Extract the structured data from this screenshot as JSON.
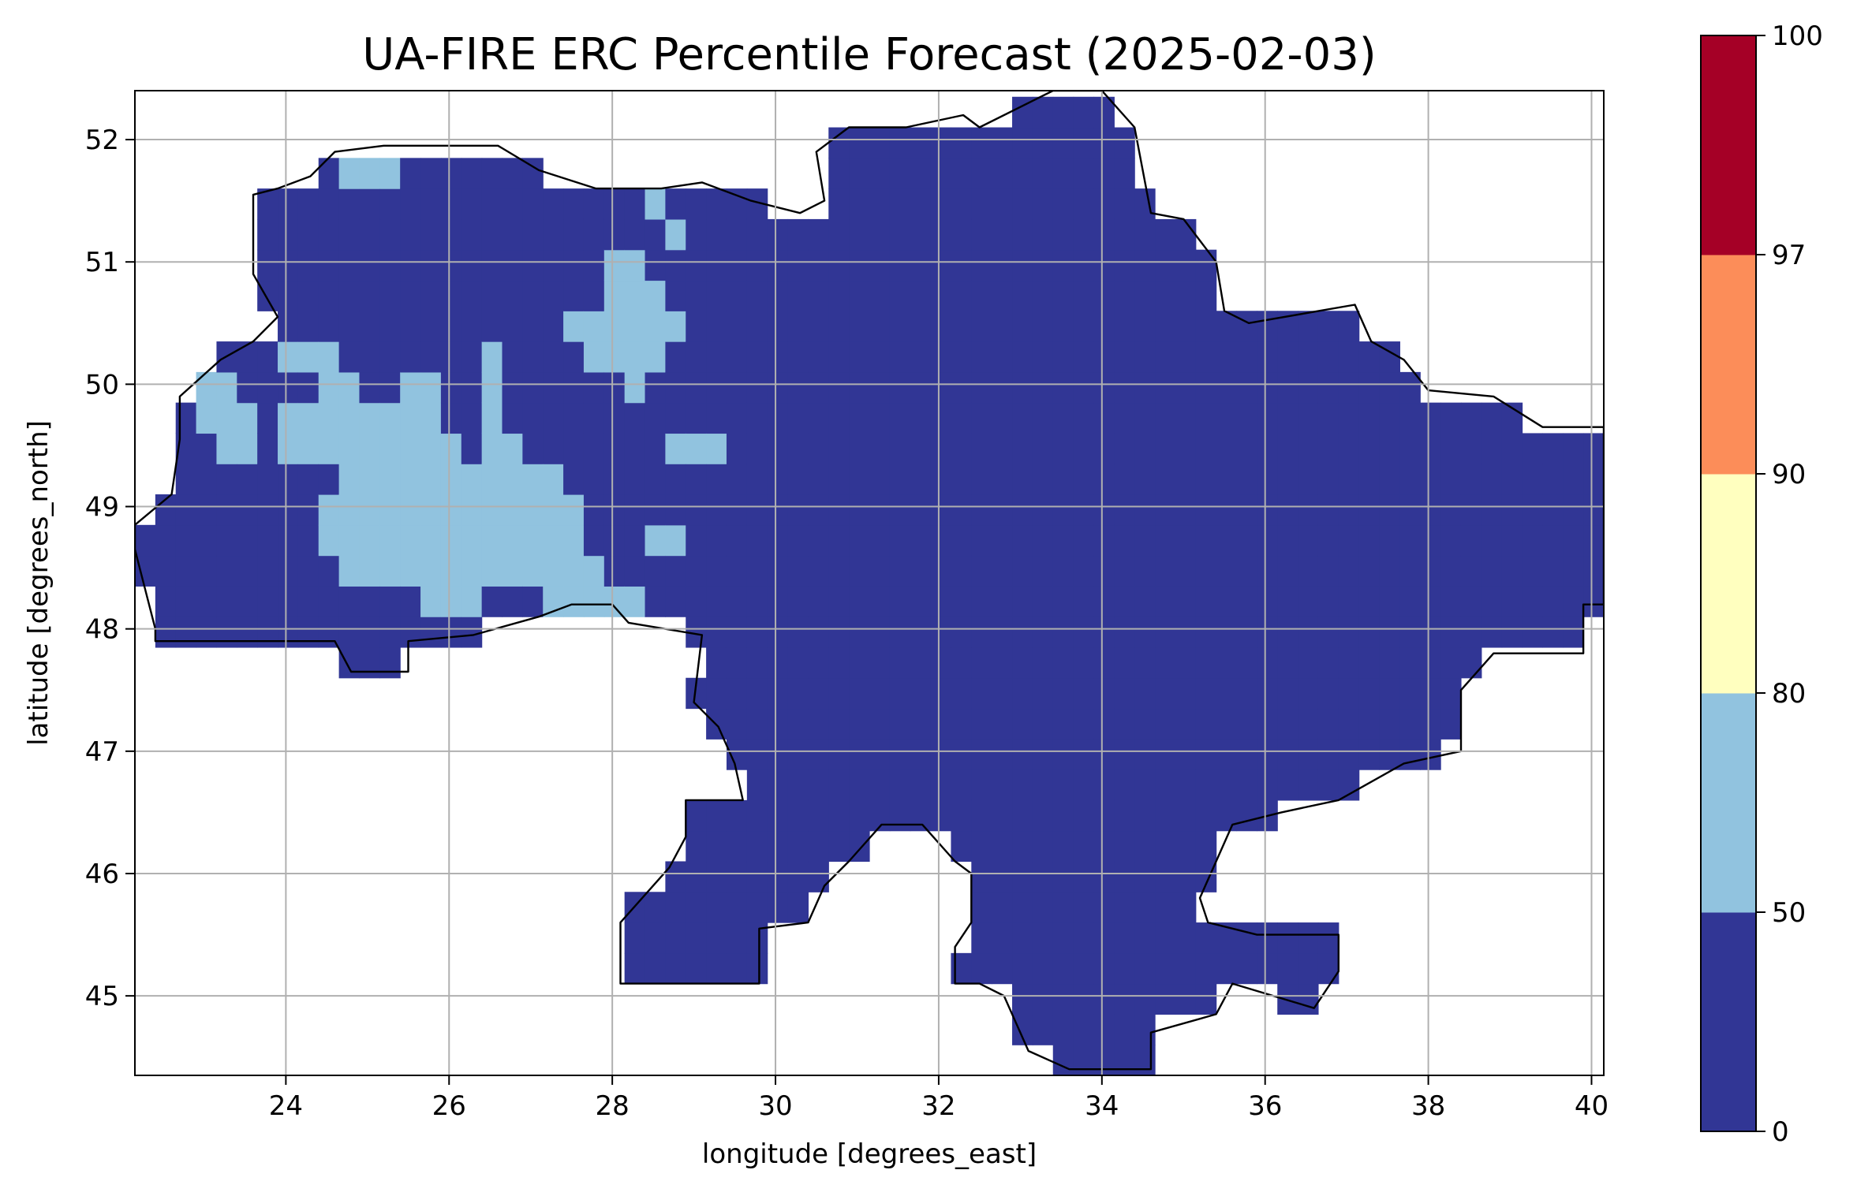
{
  "chart_data": {
    "type": "heatmap",
    "title": "UA-FIRE ERC Percentile Forecast (2025-02-03)",
    "xlabel": "longitude [degrees_east]",
    "ylabel": "latitude [degrees_north]",
    "xlim": [
      22.15,
      40.15
    ],
    "ylim": [
      44.35,
      52.4
    ],
    "x_ticks": [
      24,
      26,
      28,
      30,
      32,
      34,
      36,
      38,
      40
    ],
    "y_ticks": [
      45,
      46,
      47,
      48,
      49,
      50,
      51,
      52
    ],
    "x_tick_labels": [
      "24",
      "26",
      "28",
      "30",
      "32",
      "34",
      "36",
      "38",
      "40"
    ],
    "y_tick_labels": [
      "45",
      "46",
      "47",
      "48",
      "49",
      "50",
      "51",
      "52"
    ],
    "grid": true,
    "colorbar": {
      "boundaries": [
        0,
        50,
        80,
        90,
        97,
        100
      ],
      "tick_labels": [
        "0",
        "50",
        "80",
        "90",
        "97",
        "100"
      ],
      "colors": [
        "#313695",
        "#91c3df",
        "#ffffbf",
        "#fc8d59",
        "#a50026"
      ]
    },
    "regions": [
      {
        "name": "Ukraine domain, ERC percentile 0–50",
        "color": "#313695"
      },
      {
        "name": "Western Ukraine areas, ERC percentile 50–80",
        "color": "#91c3df"
      }
    ]
  }
}
